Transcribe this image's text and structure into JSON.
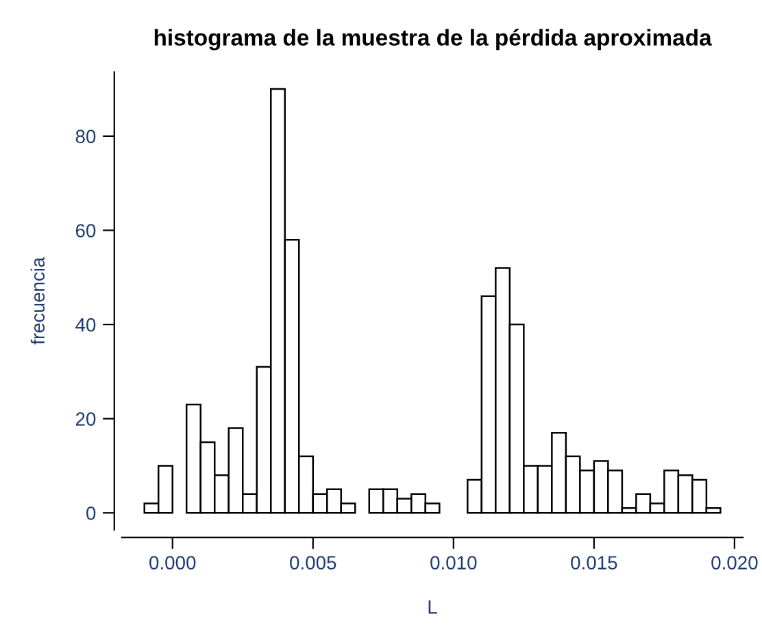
{
  "chart_data": {
    "type": "histogram",
    "title": "histograma de la muestra de la pérdida aproximada",
    "xlabel": "L",
    "ylabel": "frecuencia",
    "bins": [
      -0.001,
      -0.0005,
      0.0,
      0.0005,
      0.001,
      0.0015,
      0.002,
      0.0025,
      0.003,
      0.0035,
      0.004,
      0.0045,
      0.005,
      0.0055,
      0.006,
      0.0065,
      0.007,
      0.0075,
      0.008,
      0.0085,
      0.009,
      0.0095,
      0.01,
      0.0105,
      0.011,
      0.0115,
      0.012,
      0.0125,
      0.013,
      0.0135,
      0.014,
      0.0145,
      0.015,
      0.0155,
      0.016,
      0.0165,
      0.017,
      0.0175,
      0.018,
      0.0185,
      0.019,
      0.0195
    ],
    "values": [
      2,
      10,
      0,
      23,
      15,
      8,
      18,
      4,
      31,
      90,
      58,
      12,
      4,
      5,
      2,
      0,
      5,
      5,
      3,
      4,
      2,
      0,
      0,
      7,
      46,
      52,
      40,
      10,
      10,
      17,
      12,
      9,
      11,
      9,
      1,
      4,
      2,
      9,
      8,
      7,
      1
    ],
    "color": "#ffffff",
    "xlim": [
      -0.0018,
      0.0203
    ],
    "ylim": [
      -3.6,
      93.6
    ],
    "xticks": [
      {
        "value": 0.0,
        "label": "0.000"
      },
      {
        "value": 0.005,
        "label": "0.005"
      },
      {
        "value": 0.01,
        "label": "0.010"
      },
      {
        "value": 0.015,
        "label": "0.015"
      },
      {
        "value": 0.02,
        "label": "0.020"
      }
    ],
    "yticks": [
      0,
      20,
      40,
      60,
      80
    ],
    "grid": false
  }
}
